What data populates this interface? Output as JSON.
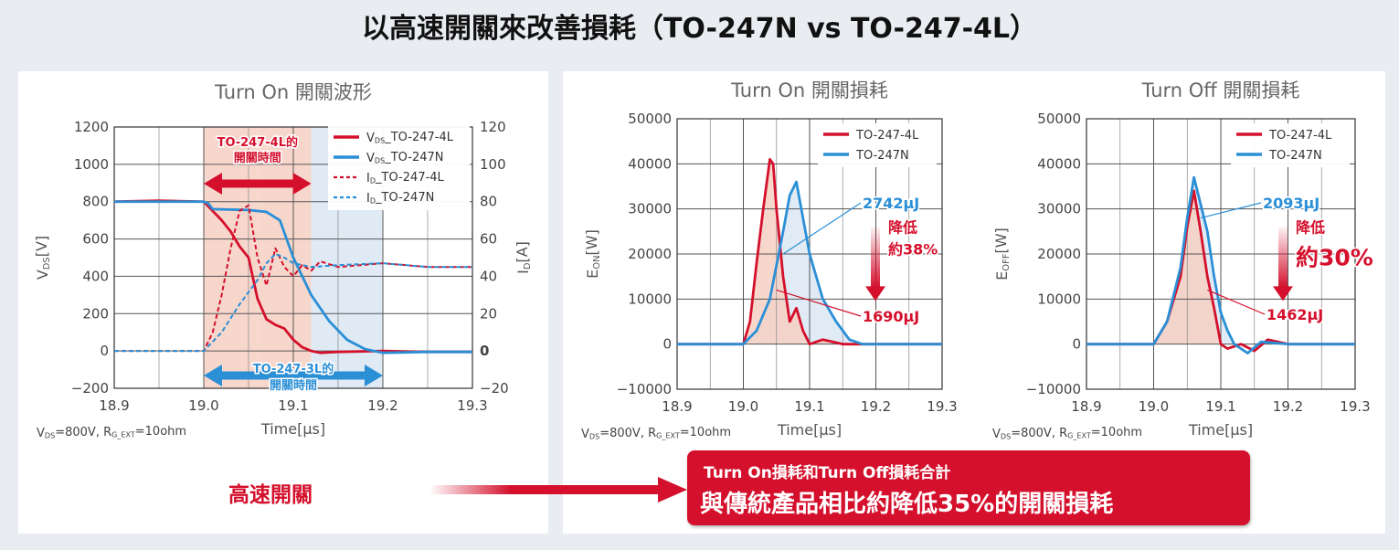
{
  "title": "以高速開關來改善損耗（TO-247N vs TO-247-4L）",
  "colors": {
    "red": "#d4102c",
    "blue": "#2b8fd6",
    "red_fill": "#f6d0c3",
    "blue_fill": "#dbe8f4"
  },
  "left_panel": {
    "arrow_top_label_1": "TO-247-4L的",
    "arrow_top_label_2": "開關時間",
    "arrow_bottom_label_1": "TO-247-3L的",
    "arrow_bottom_label_2": "開關時間"
  },
  "bottom_left_label": "高速開關",
  "banner": {
    "line1": "Turn On損耗和Turn Off損耗合計",
    "line2": "與傳統產品相比約降低35%的開關損耗"
  },
  "chart_data": [
    {
      "type": "line",
      "title": "Turn On 開關波形",
      "xlabel": "Time[μs]",
      "ylabel": "VDS[V]",
      "ylabel_main": "V",
      "ylabel_sub": "DS",
      "ylabel_unit": "[V]",
      "y2label": "ID[A]",
      "y2label_main": "I",
      "y2label_sub": "D",
      "y2label_unit": "[A]",
      "condition": "VDS=800V, RG_EXT=10ohm",
      "condition_parts": [
        "V",
        "DS",
        "=800V, R",
        "G_EXT",
        "=10ohm"
      ],
      "xlim": [
        18.9,
        19.3
      ],
      "ylim": [
        -200,
        1200
      ],
      "y2lim": [
        -20,
        120
      ],
      "xticks": [
        "18.9",
        "19.0",
        "19.1",
        "19.2",
        "19.3"
      ],
      "xtick_values": [
        18.9,
        19.0,
        19.1,
        19.2,
        19.3
      ],
      "yticks": [
        "−200",
        "0",
        "200",
        "400",
        "600",
        "800",
        "1000",
        "1200"
      ],
      "ytick_values": [
        -200,
        0,
        200,
        400,
        600,
        800,
        1000,
        1200
      ],
      "y2ticks": [
        "−20",
        "0",
        "20",
        "40",
        "60",
        "80",
        "100",
        "120"
      ],
      "y2tick_values": [
        -20,
        0,
        20,
        40,
        60,
        80,
        100,
        120
      ],
      "shaded_regions": [
        {
          "from": 19.0,
          "to": 19.06,
          "color": "red"
        },
        {
          "from": 19.06,
          "to": 19.12,
          "color": "red"
        },
        {
          "from": 19.12,
          "to": 19.2,
          "color": "blue"
        }
      ],
      "arrow_top": {
        "from": 19.0,
        "to": 19.12
      },
      "arrow_bottom": {
        "from": 19.0,
        "to": 19.2
      },
      "series": [
        {
          "name": "VDS_TO-247-4L",
          "name_parts": [
            "V",
            "DS",
            "_TO-247-4L"
          ],
          "color": "red",
          "dash": false,
          "axis": "left",
          "x": [
            18.9,
            18.95,
            19.0,
            19.01,
            19.02,
            19.03,
            19.04,
            19.05,
            19.06,
            19.07,
            19.08,
            19.09,
            19.1,
            19.11,
            19.12,
            19.13,
            19.15,
            19.2,
            19.25,
            19.3
          ],
          "y": [
            800,
            805,
            800,
            750,
            700,
            640,
            560,
            500,
            280,
            170,
            140,
            120,
            60,
            20,
            0,
            -10,
            -5,
            0,
            -5,
            -5
          ]
        },
        {
          "name": "VDS_TO-247N",
          "name_parts": [
            "V",
            "DS",
            "_TO-247N"
          ],
          "color": "blue",
          "dash": false,
          "axis": "left",
          "x": [
            18.9,
            18.95,
            19.0,
            19.005,
            19.01,
            19.05,
            19.07,
            19.085,
            19.1,
            19.12,
            19.14,
            19.16,
            19.18,
            19.2,
            19.25,
            19.3
          ],
          "y": [
            800,
            800,
            800,
            790,
            760,
            755,
            745,
            700,
            500,
            300,
            160,
            60,
            10,
            -10,
            -5,
            -5
          ]
        },
        {
          "name": "ID_TO-247-4L",
          "name_parts": [
            "I",
            "D",
            "_TO-247-4L"
          ],
          "color": "red",
          "dash": true,
          "axis": "right",
          "x": [
            18.9,
            18.95,
            19.0,
            19.01,
            19.02,
            19.03,
            19.04,
            19.05,
            19.06,
            19.07,
            19.08,
            19.09,
            19.1,
            19.11,
            19.12,
            19.13,
            19.15,
            19.2,
            19.25,
            19.3
          ],
          "y": [
            0,
            0,
            0,
            10,
            30,
            55,
            75,
            78,
            50,
            35,
            55,
            45,
            40,
            46,
            43,
            48,
            45,
            47,
            45,
            45
          ]
        },
        {
          "name": "ID_TO-247N",
          "name_parts": [
            "I",
            "D",
            "_TO-247N"
          ],
          "color": "blue",
          "dash": true,
          "axis": "right",
          "x": [
            18.9,
            18.95,
            19.0,
            19.02,
            19.04,
            19.06,
            19.07,
            19.08,
            19.09,
            19.1,
            19.12,
            19.15,
            19.2,
            19.25,
            19.3
          ],
          "y": [
            0,
            0,
            0,
            10,
            25,
            38,
            47,
            52,
            50,
            47,
            45,
            46,
            47,
            45,
            45
          ]
        }
      ]
    },
    {
      "type": "area",
      "title": "Turn On 開關損耗",
      "xlabel": "Time[μs]",
      "ylabel": "EON[W]",
      "ylabel_main": "E",
      "ylabel_sub": "ON",
      "ylabel_unit": "[W]",
      "condition": "VDS=800V, RG_EXT=10ohm",
      "condition_parts": [
        "V",
        "DS",
        "=800V, R",
        "G_EXT",
        "=10ohm"
      ],
      "xlim": [
        18.9,
        19.3
      ],
      "ylim": [
        -10000,
        50000
      ],
      "xticks": [
        "18.9",
        "19.0",
        "19.1",
        "19.2",
        "19.3"
      ],
      "xtick_values": [
        18.9,
        19.0,
        19.1,
        19.2,
        19.3
      ],
      "yticks": [
        "−10000",
        "0",
        "10000",
        "20000",
        "30000",
        "40000",
        "50000"
      ],
      "ytick_values": [
        -10000,
        0,
        10000,
        20000,
        30000,
        40000,
        50000
      ],
      "annotations": {
        "blue_energy": "2742μJ",
        "red_energy": "1690μJ",
        "reduction_1": "降低",
        "reduction_2": "約38%"
      },
      "series": [
        {
          "name": "TO-247-4L",
          "color": "red",
          "x": [
            18.9,
            19.0,
            19.01,
            19.02,
            19.03,
            19.04,
            19.045,
            19.05,
            19.06,
            19.07,
            19.08,
            19.09,
            19.1,
            19.12,
            19.15,
            19.2,
            19.3
          ],
          "y": [
            0,
            0,
            5000,
            18000,
            30000,
            41000,
            40000,
            30000,
            15000,
            5000,
            8000,
            3000,
            0,
            1000,
            0,
            0,
            0
          ]
        },
        {
          "name": "TO-247N",
          "color": "blue",
          "x": [
            18.9,
            19.0,
            19.02,
            19.04,
            19.06,
            19.07,
            19.08,
            19.09,
            19.1,
            19.12,
            19.14,
            19.16,
            19.18,
            19.2,
            19.3
          ],
          "y": [
            0,
            0,
            3000,
            10000,
            25000,
            33000,
            36000,
            28000,
            20000,
            10000,
            5000,
            1000,
            0,
            0,
            0
          ]
        }
      ]
    },
    {
      "type": "area",
      "title": "Turn Off 開關損耗",
      "xlabel": "Time[μs]",
      "ylabel": "EOFF[W]",
      "ylabel_main": "E",
      "ylabel_sub": "OFF",
      "ylabel_unit": "[W]",
      "condition": "VDS=800V, RG_EXT=10ohm",
      "condition_parts": [
        "V",
        "DS",
        "=800V, R",
        "G_EXT",
        "=10ohm"
      ],
      "xlim": [
        18.9,
        19.3
      ],
      "ylim": [
        -10000,
        50000
      ],
      "xticks": [
        "18.9",
        "19.0",
        "19.1",
        "19.2",
        "19.3"
      ],
      "xtick_values": [
        18.9,
        19.0,
        19.1,
        19.2,
        19.3
      ],
      "yticks": [
        "−10000",
        "0",
        "10000",
        "20000",
        "30000",
        "40000",
        "50000"
      ],
      "ytick_values": [
        -10000,
        0,
        10000,
        20000,
        30000,
        40000,
        50000
      ],
      "annotations": {
        "blue_energy": "2093μJ",
        "red_energy": "1462μJ",
        "reduction_1": "降低",
        "reduction_2": "約30%"
      },
      "series": [
        {
          "name": "TO-247-4L",
          "color": "red",
          "x": [
            18.9,
            19.0,
            19.02,
            19.04,
            19.05,
            19.06,
            19.07,
            19.08,
            19.09,
            19.1,
            19.11,
            19.13,
            19.15,
            19.17,
            19.2,
            19.25,
            19.3
          ],
          "y": [
            0,
            0,
            5000,
            15000,
            26000,
            34000,
            25000,
            15000,
            8000,
            0,
            -1000,
            0,
            -1500,
            1000,
            0,
            0,
            0
          ]
        },
        {
          "name": "TO-247N",
          "color": "blue",
          "x": [
            18.9,
            19.0,
            19.02,
            19.04,
            19.05,
            19.06,
            19.07,
            19.08,
            19.09,
            19.1,
            19.11,
            19.12,
            19.14,
            19.16,
            19.2,
            19.3
          ],
          "y": [
            0,
            0,
            5000,
            17000,
            28000,
            37000,
            31000,
            25000,
            15000,
            7000,
            3000,
            0,
            -2000,
            500,
            0,
            0
          ]
        }
      ]
    }
  ]
}
